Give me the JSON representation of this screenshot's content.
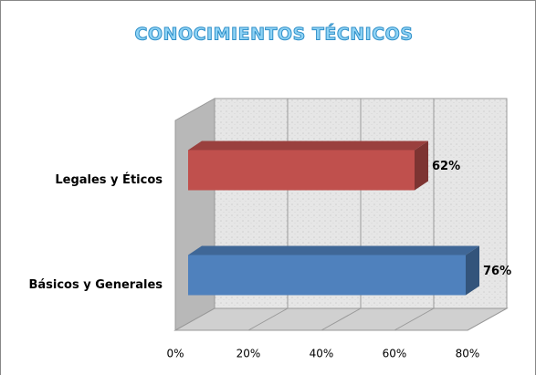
{
  "chart_data": {
    "type": "bar3d",
    "title": "CONOCIMIENTOS TÉCNICOS",
    "categories": [
      "Legales y Éticos",
      "Básicos y Generales"
    ],
    "series": [
      {
        "colors": [
          "#c0504d",
          "#4f81bd"
        ],
        "values": [
          62,
          76
        ],
        "value_labels": [
          "62%",
          "76%"
        ]
      }
    ],
    "xlim": [
      0,
      80
    ],
    "xticks": [
      {
        "value": 0,
        "label": "0%"
      },
      {
        "value": 20,
        "label": "20%"
      },
      {
        "value": 40,
        "label": "40%"
      },
      {
        "value": 60,
        "label": "60%"
      },
      {
        "value": 80,
        "label": "80%"
      }
    ],
    "grid": true
  }
}
